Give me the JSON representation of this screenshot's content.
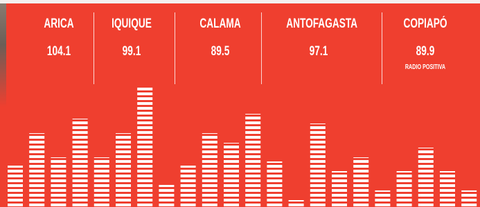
{
  "stations": [
    {
      "city": "ARICA",
      "frequency": "104.1"
    },
    {
      "city": "IQUIQUE",
      "frequency": "99.1"
    },
    {
      "city": "CALAMA",
      "frequency": "89.5"
    },
    {
      "city": "ANTOFAGASTA",
      "frequency": "97.1"
    },
    {
      "city": "COPIAPÓ",
      "frequency": "89.9",
      "note": "RADIO POSITIVA"
    }
  ]
}
